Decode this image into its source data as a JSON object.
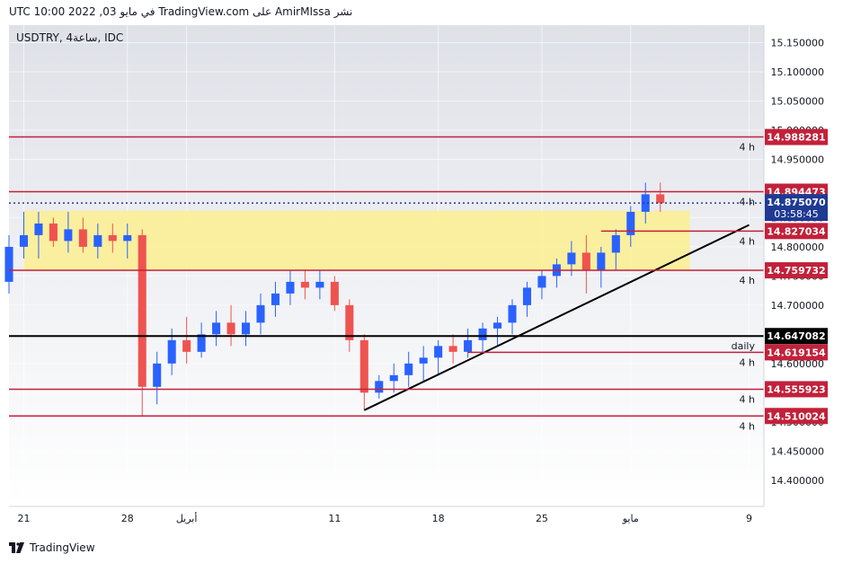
{
  "header": {
    "published": "نشر AmirMIssa على TradingView.com في مايو 03, 2022 10:00 UTC"
  },
  "footer": {
    "brand": "TradingView"
  },
  "chart_data": {
    "type": "candlestick",
    "symbol_label": "USDTRY, 4ساعة, IDC",
    "y_axis": {
      "range": [
        14.355,
        15.18
      ],
      "ticks": [
        "15.150000",
        "15.100000",
        "15.050000",
        "15.000000",
        "14.950000",
        "14.850000",
        "14.800000",
        "14.750000",
        "14.700000",
        "14.600000",
        "14.550000",
        "14.500000",
        "14.450000",
        "14.400000"
      ],
      "tick_values": [
        15.15,
        15.1,
        15.05,
        15.0,
        14.95,
        14.85,
        14.8,
        14.75,
        14.7,
        14.6,
        14.55,
        14.5,
        14.45,
        14.4
      ]
    },
    "x_axis": {
      "range": [
        "2022-03-20",
        "2022-05-10"
      ],
      "ticks": [
        {
          "label": "21",
          "date": "2022-03-21"
        },
        {
          "label": "28",
          "date": "2022-03-28"
        },
        {
          "label": "أبريل",
          "date": "2022-04-01"
        },
        {
          "label": "11",
          "date": "2022-04-11"
        },
        {
          "label": "18",
          "date": "2022-04-18"
        },
        {
          "label": "25",
          "date": "2022-04-25"
        },
        {
          "label": "مايو",
          "date": "2022-05-01"
        },
        {
          "label": "9",
          "date": "2022-05-09"
        }
      ]
    },
    "price_levels": [
      {
        "value": 14.988281,
        "label": "14.988281",
        "tag": "4 h",
        "color": "#c2213a"
      },
      {
        "value": 14.894473,
        "label": "14.894473",
        "tag": "4 h",
        "color": "#c2213a"
      },
      {
        "value": 14.827034,
        "label": "14.827034",
        "tag": "4 h",
        "color": "#c2213a",
        "from": "2022-04-29"
      },
      {
        "value": 14.759732,
        "label": "14.759732",
        "tag": "4 h",
        "color": "#c2213a"
      },
      {
        "value": 14.647082,
        "label": "14.647082",
        "tag": "daily",
        "color": "#000000"
      },
      {
        "value": 14.619154,
        "label": "14.619154",
        "tag": "4 h",
        "color": "#c2213a",
        "from": "2022-04-20"
      },
      {
        "value": 14.555923,
        "label": "14.555923",
        "tag": "4 h",
        "color": "#c2213a"
      },
      {
        "value": 14.510024,
        "label": "14.510024",
        "tag": "4 h",
        "color": "#c2213a"
      }
    ],
    "current_price": {
      "value": 14.87507,
      "label": "14.875070",
      "countdown": "03:58:45",
      "color": "#1f3a93"
    },
    "zone": {
      "from": "2022-03-21",
      "to": "2022-05-05",
      "low": 14.7598,
      "high": 14.862,
      "color": "#fbef8f"
    },
    "trendline": {
      "x1": "2022-04-13",
      "y1": 14.52,
      "x2": "2022-05-09",
      "y2": 14.8375,
      "color": "#000000",
      "overlap_color": "#a8a040"
    },
    "colors": {
      "up": "#2962ff",
      "down": "#ef5350"
    },
    "series": [
      {
        "name": "USDTRY",
        "points": [
          [
            "2022-03-18",
            14.62,
            14.68,
            14.6,
            14.66
          ],
          [
            "2022-03-19",
            14.66,
            14.76,
            14.64,
            14.74
          ],
          [
            "2022-03-20",
            14.74,
            14.82,
            14.72,
            14.8
          ],
          [
            "2022-03-21",
            14.8,
            14.86,
            14.78,
            14.82
          ],
          [
            "2022-03-22",
            14.82,
            14.86,
            14.78,
            14.84
          ],
          [
            "2022-03-23",
            14.84,
            14.85,
            14.8,
            14.81
          ],
          [
            "2022-03-24",
            14.81,
            14.86,
            14.79,
            14.83
          ],
          [
            "2022-03-25",
            14.83,
            14.85,
            14.79,
            14.8
          ],
          [
            "2022-03-26",
            14.8,
            14.84,
            14.78,
            14.82
          ],
          [
            "2022-03-27",
            14.82,
            14.84,
            14.79,
            14.81
          ],
          [
            "2022-03-28",
            14.81,
            14.84,
            14.78,
            14.82
          ],
          [
            "2022-03-29",
            14.82,
            14.83,
            14.51,
            14.56
          ],
          [
            "2022-03-30",
            14.56,
            14.62,
            14.53,
            14.6
          ],
          [
            "2022-03-31",
            14.6,
            14.66,
            14.58,
            14.64
          ],
          [
            "2022-04-01",
            14.64,
            14.68,
            14.6,
            14.62
          ],
          [
            "2022-04-02",
            14.62,
            14.67,
            14.61,
            14.65
          ],
          [
            "2022-04-03",
            14.65,
            14.69,
            14.63,
            14.67
          ],
          [
            "2022-04-04",
            14.67,
            14.7,
            14.63,
            14.65
          ],
          [
            "2022-04-05",
            14.65,
            14.69,
            14.63,
            14.67
          ],
          [
            "2022-04-06",
            14.67,
            14.72,
            14.65,
            14.7
          ],
          [
            "2022-04-07",
            14.7,
            14.74,
            14.68,
            14.72
          ],
          [
            "2022-04-08",
            14.72,
            14.76,
            14.7,
            14.74
          ],
          [
            "2022-04-09",
            14.74,
            14.76,
            14.71,
            14.73
          ],
          [
            "2022-04-10",
            14.73,
            14.76,
            14.71,
            14.74
          ],
          [
            "2022-04-11",
            14.74,
            14.75,
            14.69,
            14.7
          ],
          [
            "2022-04-12",
            14.7,
            14.71,
            14.62,
            14.64
          ],
          [
            "2022-04-13",
            14.64,
            14.65,
            14.52,
            14.55
          ],
          [
            "2022-04-14",
            14.55,
            14.58,
            14.54,
            14.57
          ],
          [
            "2022-04-15",
            14.57,
            14.6,
            14.55,
            14.58
          ],
          [
            "2022-04-16",
            14.58,
            14.62,
            14.56,
            14.6
          ],
          [
            "2022-04-17",
            14.6,
            14.63,
            14.57,
            14.61
          ],
          [
            "2022-04-18",
            14.61,
            14.64,
            14.58,
            14.63
          ],
          [
            "2022-04-19",
            14.63,
            14.65,
            14.6,
            14.62
          ],
          [
            "2022-04-20",
            14.62,
            14.66,
            14.61,
            14.64
          ],
          [
            "2022-04-21",
            14.64,
            14.67,
            14.62,
            14.66
          ],
          [
            "2022-04-22",
            14.66,
            14.68,
            14.63,
            14.67
          ],
          [
            "2022-04-23",
            14.67,
            14.71,
            14.65,
            14.7
          ],
          [
            "2022-04-24",
            14.7,
            14.74,
            14.68,
            14.73
          ],
          [
            "2022-04-25",
            14.73,
            14.76,
            14.71,
            14.75
          ],
          [
            "2022-04-26",
            14.75,
            14.78,
            14.73,
            14.77
          ],
          [
            "2022-04-27",
            14.77,
            14.81,
            14.75,
            14.79
          ],
          [
            "2022-04-28",
            14.79,
            14.82,
            14.72,
            14.76
          ],
          [
            "2022-04-29",
            14.76,
            14.8,
            14.73,
            14.79
          ],
          [
            "2022-04-30",
            14.79,
            14.83,
            14.76,
            14.82
          ],
          [
            "2022-05-01",
            14.82,
            14.87,
            14.8,
            14.86
          ],
          [
            "2022-05-02",
            14.86,
            14.91,
            14.84,
            14.89
          ],
          [
            "2022-05-03",
            14.89,
            14.91,
            14.86,
            14.875
          ]
        ]
      }
    ]
  }
}
